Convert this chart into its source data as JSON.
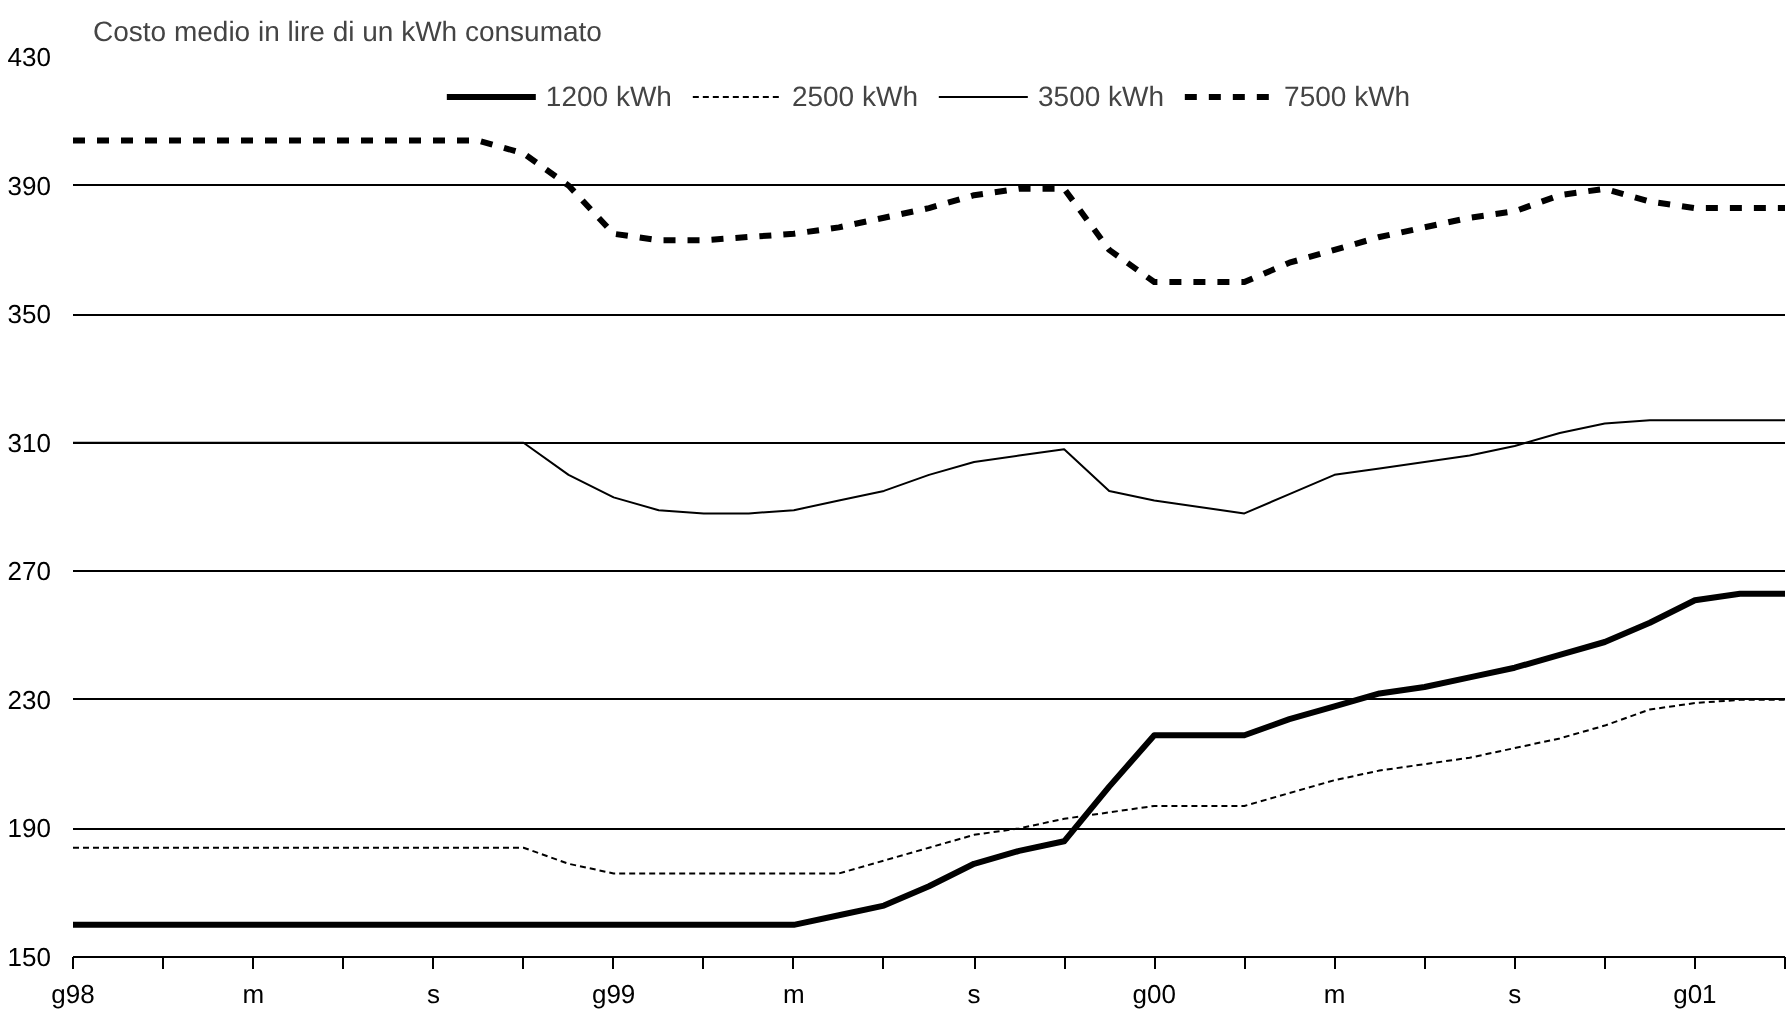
{
  "chart_data": {
    "type": "line",
    "title": "Costo medio in lire di un kWh consumato",
    "categories": [
      "g98",
      null,
      null,
      null,
      "m",
      null,
      null,
      null,
      "s",
      null,
      null,
      null,
      "g99",
      null,
      null,
      null,
      "m",
      null,
      null,
      null,
      "s",
      null,
      null,
      null,
      "g00",
      null,
      null,
      null,
      "m",
      null,
      null,
      null,
      "s",
      null,
      null,
      null,
      "g01",
      null,
      null
    ],
    "series": [
      {
        "name": "1200 kWh",
        "color": "#000000",
        "line_style": "solid",
        "values": [
          160,
          160,
          160,
          160,
          160,
          160,
          160,
          160,
          160,
          160,
          160,
          160,
          160,
          160,
          160,
          160,
          160,
          163,
          166,
          172,
          179,
          183,
          186,
          203,
          219,
          219,
          219,
          224,
          228,
          232,
          234,
          237,
          240,
          244,
          248,
          254,
          261,
          263,
          263
        ]
      },
      {
        "name": "2500 kWh",
        "color": "#000000",
        "line_style": "dotted",
        "values": [
          184,
          184,
          184,
          184,
          184,
          184,
          184,
          184,
          184,
          184,
          184,
          179,
          176,
          176,
          176,
          176,
          176,
          176,
          180,
          184,
          188,
          190,
          193,
          195,
          197,
          197,
          197,
          201,
          205,
          208,
          210,
          212,
          215,
          218,
          222,
          227,
          229,
          230,
          230
        ]
      },
      {
        "name": "3500 kWh",
        "color": "#000000",
        "line_style": "solid",
        "values": [
          310,
          310,
          310,
          310,
          310,
          310,
          310,
          310,
          310,
          310,
          310,
          300,
          293,
          289,
          288,
          288,
          289,
          292,
          295,
          300,
          304,
          306,
          308,
          295,
          292,
          290,
          288,
          294,
          300,
          302,
          304,
          306,
          309,
          313,
          316,
          317,
          317,
          317,
          317
        ]
      },
      {
        "name": "7500 kWh",
        "color": "#000000",
        "line_style": "dashed",
        "values": [
          404,
          404,
          404,
          404,
          404,
          404,
          404,
          404,
          404,
          404,
          400,
          390,
          375,
          373,
          373,
          374,
          375,
          377,
          380,
          383,
          387,
          389,
          389,
          370,
          360,
          360,
          360,
          366,
          370,
          374,
          377,
          380,
          382,
          387,
          389,
          385,
          383,
          383,
          383
        ]
      }
    ],
    "ylim": [
      150,
      430
    ],
    "yticks": [
      150,
      190,
      230,
      270,
      310,
      350,
      390,
      430
    ],
    "grid": "y",
    "legend": "top",
    "marker": "none"
  }
}
